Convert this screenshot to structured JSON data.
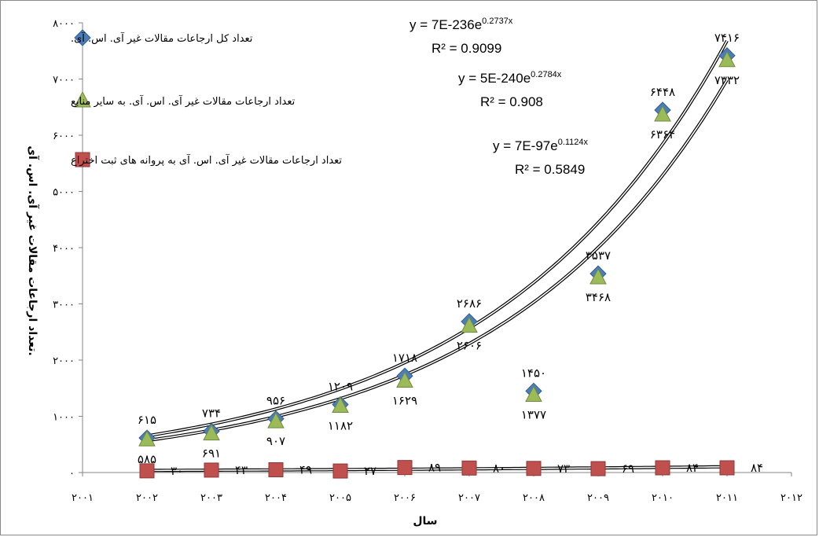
{
  "chart_data": {
    "type": "scatter",
    "xlabel": "سال",
    "ylabel": "تعداد ارجاعات مقالات غیر آی. اس. آی.",
    "xlim": [
      2001,
      2012
    ],
    "ylim": [
      0,
      8000
    ],
    "x_ticks": [
      2001,
      2002,
      2003,
      2004,
      2005,
      2006,
      2007,
      2008,
      2009,
      2010,
      2011,
      2012
    ],
    "x_tick_labels": [
      "۲۰۰۱",
      "۲۰۰۲",
      "۲۰۰۳",
      "۲۰۰۴",
      "۲۰۰۵",
      "۲۰۰۶",
      "۲۰۰۷",
      "۲۰۰۸",
      "۲۰۰۹",
      "۲۰۱۰",
      "۲۰۱۱",
      "۲۰۱۲"
    ],
    "y_ticks": [
      0,
      1000,
      2000,
      3000,
      4000,
      5000,
      6000,
      7000,
      8000
    ],
    "y_tick_labels": [
      "۰",
      "۱۰۰۰",
      "۲۰۰۰",
      "۳۰۰۰",
      "۴۰۰۰",
      "۵۰۰۰",
      "۶۰۰۰",
      "۷۰۰۰",
      "۸۰۰۰"
    ],
    "x": [
      2002,
      2003,
      2004,
      2005,
      2006,
      2007,
      2008,
      2009,
      2010,
      2011
    ],
    "series": [
      {
        "name": "تعداد کل ارجاعات مقالات غیر آی. اس. آی.",
        "marker": "diamond",
        "color": "#4a7ebb",
        "values": [
          615,
          734,
          956,
          1209,
          1718,
          2686,
          1450,
          3537,
          6448,
          7416
        ],
        "labels": [
          "۶۱۵",
          "۷۳۴",
          "۹۵۶",
          "۱۲۰۹",
          "۱۷۱۸",
          "۲۶۸۶",
          "۱۴۵۰",
          "۳۵۳۷",
          "۶۴۴۸",
          "۷۴۱۶"
        ]
      },
      {
        "name": "تعداد ارجاعات مقالات غیر آی. اس. آی. به سایر منابع",
        "marker": "triangle",
        "color": "#9bbb59",
        "values": [
          585,
          691,
          907,
          1182,
          1629,
          2606,
          1377,
          3468,
          6364,
          7332
        ],
        "labels": [
          "۵۸۵",
          "۶۹۱",
          "۹۰۷",
          "۱۱۸۲",
          "۱۶۲۹",
          "۲۶۰۶",
          "۱۳۷۷",
          "۳۴۶۸",
          "۶۳۶۴",
          "۷۳۳۲"
        ]
      },
      {
        "name": "تعداد ارجاعات مقالات غیر آی. اس. آی به پروانه های ثبت اختراع",
        "marker": "square",
        "color": "#c0504d",
        "values": [
          30,
          43,
          49,
          27,
          89,
          80,
          73,
          69,
          84,
          84
        ],
        "labels": [
          "۳۰",
          "۴۳",
          "۴۹",
          "۲۷",
          "۸۹",
          "۸۰",
          "۷۳",
          "۶۹",
          "۸۴",
          "۸۴"
        ]
      }
    ],
    "trendlines": [
      {
        "type": "exponential",
        "a": 7e-236,
        "b": 0.2737,
        "equation": "y = 7E-236e",
        "exponent": "0.2737x",
        "r2": "R² = 0.9099"
      },
      {
        "type": "exponential",
        "a": 5e-240,
        "b": 0.2784,
        "equation": "y = 5E-240e",
        "exponent": "0.2784x",
        "r2": "R² = 0.908"
      },
      {
        "type": "exponential",
        "a": 7e-97,
        "b": 0.1124,
        "equation": "y = 7E-97e",
        "exponent": "0.1124x",
        "r2": "R² = 0.5849"
      }
    ],
    "legend_position": "top-left",
    "grid": false
  }
}
